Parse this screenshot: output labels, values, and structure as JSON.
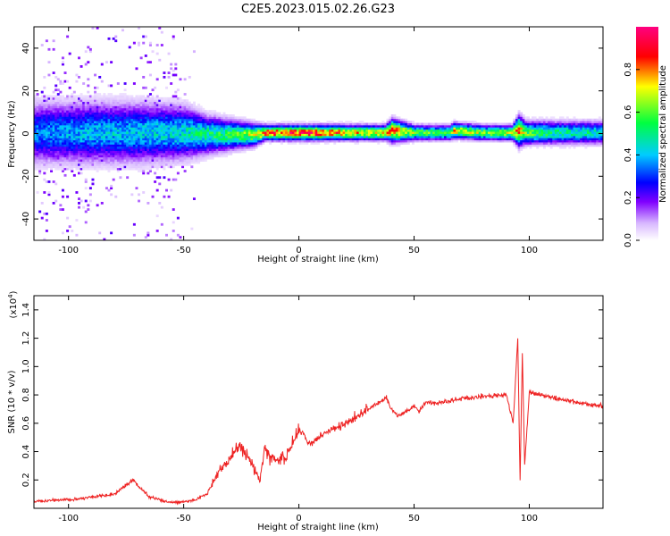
{
  "chart_data": [
    {
      "type": "heatmap",
      "title": "C2E5.2023.015.02.26.G23",
      "xlabel": "Height of straight line (km)",
      "ylabel": "Frequency (Hz)",
      "xlim": [
        -115,
        132
      ],
      "ylim": [
        -50,
        50
      ],
      "xticks": [
        -100,
        -50,
        0,
        50,
        100
      ],
      "yticks": [
        -40,
        -20,
        0,
        20,
        40
      ],
      "ridge": {
        "x": [
          -115,
          -90,
          -70,
          -50,
          -40,
          -30,
          -20,
          -15,
          -5,
          0,
          10,
          20,
          37,
          40,
          50,
          65,
          67,
          80,
          92,
          95,
          98,
          110,
          132
        ],
        "center_hz": [
          0,
          0,
          0,
          0,
          -1,
          -1,
          -1,
          0,
          0,
          0,
          0,
          0,
          0,
          1,
          0,
          0,
          1,
          0,
          0,
          1,
          0,
          0,
          0
        ],
        "halfwidth_hz": [
          8,
          8,
          8,
          7,
          5,
          4,
          3,
          2,
          2,
          2,
          2,
          2,
          2,
          3,
          2,
          2,
          2,
          2,
          2,
          4,
          3,
          3,
          3
        ],
        "peak_amplitude": [
          0.35,
          0.4,
          0.4,
          0.45,
          0.5,
          0.55,
          0.65,
          0.8,
          0.85,
          0.9,
          0.85,
          0.75,
          0.7,
          0.85,
          0.6,
          0.55,
          0.75,
          0.6,
          0.65,
          0.8,
          0.6,
          0.5,
          0.45
        ]
      },
      "colorbar": {
        "label": "Normalized spectral amplitude",
        "range": [
          0,
          1
        ],
        "ticks": [
          "0.0",
          "0.2",
          "0.4",
          "0.6",
          "0.8"
        ],
        "colors": [
          "#ffffff",
          "#8000ff",
          "#0000ff",
          "#00ffff",
          "#00ff00",
          "#ffff00",
          "#ff0000",
          "#ff0080"
        ]
      }
    },
    {
      "type": "line",
      "xlabel": "Height of straight line (km)",
      "ylabel": "SNR (10 * v/v)",
      "y_multiplier": "(x10",
      "y_multiplier_exp": "4",
      "xlim": [
        -115,
        132
      ],
      "ylim": [
        0,
        1.5
      ],
      "xticks": [
        -100,
        -50,
        0,
        50,
        100
      ],
      "yticks": [
        "0.2",
        "0.4",
        "0.6",
        "0.8",
        "1.0",
        "1.2",
        "1.4"
      ],
      "color": "#ee2222",
      "series": [
        {
          "x": [
            -115,
            -100,
            -90,
            -80,
            -72,
            -65,
            -58,
            -52,
            -45,
            -40,
            -35,
            -30,
            -25,
            -20,
            -17,
            -15,
            -10,
            -5,
            0,
            5,
            10,
            20,
            30,
            38,
            40,
            43,
            50,
            52,
            55,
            60,
            70,
            80,
            90,
            93,
            95,
            96,
            97,
            98,
            100,
            110,
            120,
            132
          ],
          "y": [
            0.05,
            0.06,
            0.08,
            0.1,
            0.2,
            0.08,
            0.05,
            0.04,
            0.06,
            0.1,
            0.25,
            0.35,
            0.45,
            0.3,
            0.2,
            0.4,
            0.35,
            0.38,
            0.55,
            0.45,
            0.52,
            0.6,
            0.7,
            0.78,
            0.7,
            0.65,
            0.72,
            0.68,
            0.75,
            0.74,
            0.77,
            0.79,
            0.8,
            0.6,
            1.2,
            0.2,
            1.1,
            0.3,
            0.82,
            0.78,
            0.75,
            0.72
          ]
        }
      ]
    }
  ]
}
